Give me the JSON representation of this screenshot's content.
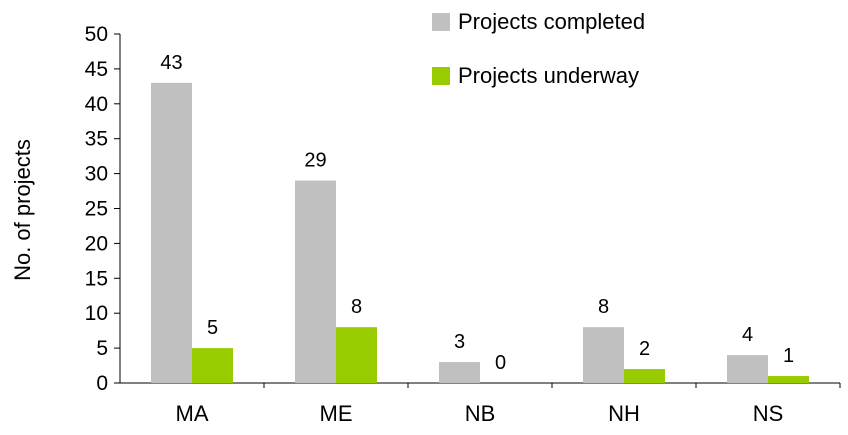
{
  "chart_data": {
    "type": "bar",
    "title": "",
    "xlabel": "",
    "ylabel": "No. of projects",
    "categories": [
      "MA",
      "ME",
      "NB",
      "NH",
      "NS"
    ],
    "series": [
      {
        "name": "Projects completed",
        "values": [
          43,
          29,
          3,
          8,
          4
        ],
        "color": "#c0c0c0"
      },
      {
        "name": "Projects underway",
        "values": [
          5,
          8,
          0,
          2,
          1
        ],
        "color": "#99cc00"
      }
    ],
    "ylim": [
      0,
      50
    ],
    "yticks": [
      0,
      5,
      10,
      15,
      20,
      25,
      30,
      35,
      40,
      45,
      50
    ],
    "grid": false,
    "legend_position": "top-right",
    "data_labels": true
  }
}
